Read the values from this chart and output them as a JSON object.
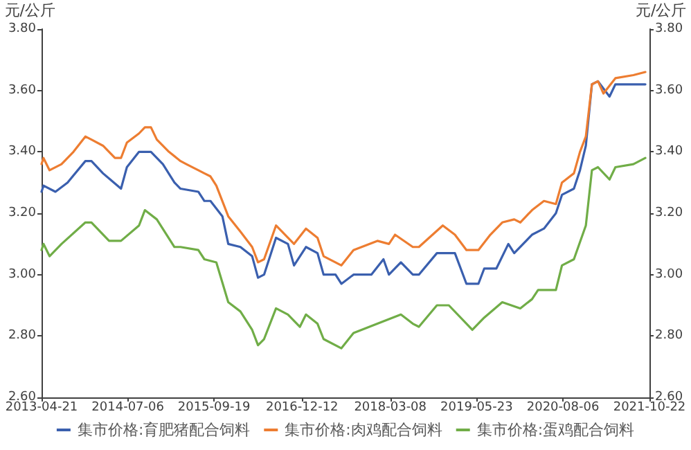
{
  "chart_data": {
    "type": "line",
    "ylabel": "元/公斤",
    "y2label": "元/公斤",
    "xlim": [
      "2013-04-21",
      "2021-10-22"
    ],
    "xticks": [
      "2013-04-21",
      "2014-07-06",
      "2015-09-19",
      "2016-12-12",
      "2018-03-08",
      "2019-05-23",
      "2020-08-06",
      "2021-10-22"
    ],
    "ylim": [
      2.6,
      3.8
    ],
    "yticks": [
      {
        "value": 2.6,
        "label": "2.60"
      },
      {
        "value": 2.8,
        "label": "2.80"
      },
      {
        "value": 3.0,
        "label": "3.00"
      },
      {
        "value": 3.2,
        "label": "3.20"
      },
      {
        "value": 3.4,
        "label": "3.40"
      },
      {
        "value": 3.6,
        "label": "3.60"
      },
      {
        "value": 3.8,
        "label": "3.80"
      }
    ],
    "y2lim": [
      2.6,
      3.8
    ],
    "y2ticks": [
      {
        "value": 2.6,
        "label": "2.60"
      },
      {
        "value": 2.8,
        "label": "2.80"
      },
      {
        "value": 3.0,
        "label": "3.00"
      },
      {
        "value": 3.2,
        "label": "3.20"
      },
      {
        "value": 3.4,
        "label": "3.40"
      },
      {
        "value": 3.6,
        "label": "3.60"
      },
      {
        "value": 3.8,
        "label": "3.80"
      }
    ],
    "grid": false,
    "legend": "bottom",
    "marker": "none",
    "line_style": "solid",
    "series": [
      {
        "name": "集市价格:育肥猪配合饲料",
        "color": "#3a5fae",
        "x": [
          "2013-04-21",
          "2013-05",
          "2013-07",
          "2013-09",
          "2013-12",
          "2014-01",
          "2014-03",
          "2014-06",
          "2014-07",
          "2014-09",
          "2014-11",
          "2015-01",
          "2015-03",
          "2015-04",
          "2015-07",
          "2015-08",
          "2015-09",
          "2015-11",
          "2015-12",
          "2016-02",
          "2016-04",
          "2016-05",
          "2016-06",
          "2016-08",
          "2016-10",
          "2016-11",
          "2017-01",
          "2017-03",
          "2017-04",
          "2017-06",
          "2017-07",
          "2017-09",
          "2017-12",
          "2018-02",
          "2018-03",
          "2018-05",
          "2018-07",
          "2018-08",
          "2018-11",
          "2019-02",
          "2019-04",
          "2019-06",
          "2019-07",
          "2019-09",
          "2019-11",
          "2019-12",
          "2020-03",
          "2020-05",
          "2020-07",
          "2020-08",
          "2020-10",
          "2020-11",
          "2020-12",
          "2021-01",
          "2021-02",
          "2021-04",
          "2021-05",
          "2021-08",
          "2021-10"
        ],
        "values": [
          3.27,
          3.29,
          3.27,
          3.3,
          3.37,
          3.37,
          3.33,
          3.28,
          3.35,
          3.4,
          3.4,
          3.36,
          3.3,
          3.28,
          3.27,
          3.24,
          3.24,
          3.19,
          3.1,
          3.09,
          3.06,
          2.99,
          3.0,
          3.12,
          3.1,
          3.03,
          3.09,
          3.07,
          3.0,
          3.0,
          2.97,
          3.0,
          3.0,
          3.05,
          3.0,
          3.04,
          3.0,
          3.0,
          3.07,
          3.07,
          2.97,
          2.97,
          3.02,
          3.02,
          3.1,
          3.07,
          3.13,
          3.15,
          3.2,
          3.26,
          3.28,
          3.34,
          3.42,
          3.62,
          3.63,
          3.58,
          3.62,
          3.62,
          3.62
        ]
      },
      {
        "name": "集市价格:肉鸡配合饲料",
        "color": "#ed7d31",
        "x": [
          "2013-04-21",
          "2013-05",
          "2013-06",
          "2013-08",
          "2013-10",
          "2013-12",
          "2014-01",
          "2014-03",
          "2014-05",
          "2014-06",
          "2014-07",
          "2014-09",
          "2014-10",
          "2014-11",
          "2014-12",
          "2015-02",
          "2015-04",
          "2015-05",
          "2015-07",
          "2015-08",
          "2015-09",
          "2015-10",
          "2015-12",
          "2016-02",
          "2016-04",
          "2016-05",
          "2016-06",
          "2016-08",
          "2016-09",
          "2016-11",
          "2017-01",
          "2017-03",
          "2017-04",
          "2017-07",
          "2017-09",
          "2018-01",
          "2018-03",
          "2018-04",
          "2018-07",
          "2018-08",
          "2018-12",
          "2019-02",
          "2019-04",
          "2019-06",
          "2019-08",
          "2019-10",
          "2019-12",
          "2020-01",
          "2020-03",
          "2020-05",
          "2020-07",
          "2020-08",
          "2020-10",
          "2020-11",
          "2020-12",
          "2021-01",
          "2021-02",
          "2021-03",
          "2021-05",
          "2021-08",
          "2021-10"
        ],
        "values": [
          3.36,
          3.38,
          3.34,
          3.36,
          3.4,
          3.45,
          3.44,
          3.42,
          3.38,
          3.38,
          3.43,
          3.46,
          3.48,
          3.48,
          3.44,
          3.4,
          3.37,
          3.36,
          3.34,
          3.33,
          3.32,
          3.29,
          3.19,
          3.14,
          3.09,
          3.04,
          3.05,
          3.16,
          3.14,
          3.1,
          3.15,
          3.12,
          3.06,
          3.03,
          3.08,
          3.11,
          3.1,
          3.13,
          3.09,
          3.09,
          3.16,
          3.13,
          3.08,
          3.08,
          3.13,
          3.17,
          3.18,
          3.17,
          3.21,
          3.24,
          3.23,
          3.3,
          3.33,
          3.4,
          3.45,
          3.62,
          3.63,
          3.59,
          3.64,
          3.65,
          3.66
        ]
      },
      {
        "name": "集市价格:蛋鸡配合饲料",
        "color": "#70ad47",
        "x": [
          "2013-04-21",
          "2013-05",
          "2013-06",
          "2013-08",
          "2013-12",
          "2014-01",
          "2014-04",
          "2014-06",
          "2014-09",
          "2014-10",
          "2014-12",
          "2015-03",
          "2015-04",
          "2015-07",
          "2015-08",
          "2015-10",
          "2015-12",
          "2016-02",
          "2016-04",
          "2016-05",
          "2016-06",
          "2016-08",
          "2016-10",
          "2016-12",
          "2017-01",
          "2017-03",
          "2017-04",
          "2017-07",
          "2017-09",
          "2018-01",
          "2018-05",
          "2018-07",
          "2018-08",
          "2018-11",
          "2019-01",
          "2019-05",
          "2019-07",
          "2019-10",
          "2020-01",
          "2020-03",
          "2020-04",
          "2020-07",
          "2020-08",
          "2020-10",
          "2020-12",
          "2021-01",
          "2021-02",
          "2021-04",
          "2021-05",
          "2021-08",
          "2021-10"
        ],
        "values": [
          3.08,
          3.1,
          3.06,
          3.1,
          3.17,
          3.17,
          3.11,
          3.11,
          3.16,
          3.21,
          3.18,
          3.09,
          3.09,
          3.08,
          3.05,
          3.04,
          2.91,
          2.88,
          2.82,
          2.77,
          2.79,
          2.89,
          2.87,
          2.83,
          2.87,
          2.84,
          2.79,
          2.76,
          2.81,
          2.84,
          2.87,
          2.84,
          2.83,
          2.9,
          2.9,
          2.82,
          2.86,
          2.91,
          2.89,
          2.92,
          2.95,
          2.95,
          3.03,
          3.05,
          3.16,
          3.34,
          3.35,
          3.31,
          3.35,
          3.36,
          3.38
        ]
      }
    ]
  }
}
